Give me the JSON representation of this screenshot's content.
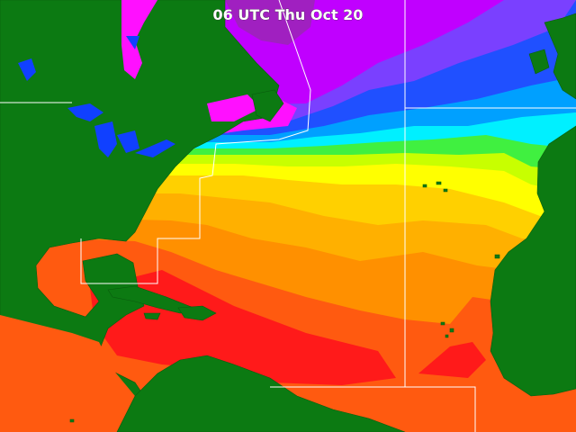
{
  "header": {
    "title": "06 UTC Thu Oct 20"
  }
}
